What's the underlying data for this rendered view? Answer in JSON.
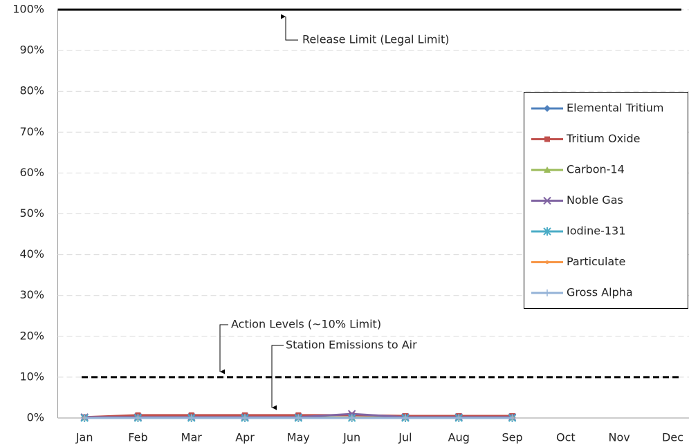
{
  "chart_data": {
    "type": "line",
    "categories": [
      "Jan",
      "Feb",
      "Mar",
      "Apr",
      "May",
      "Jun",
      "Jul",
      "Aug",
      "Sep",
      "Oct",
      "Nov",
      "Dec"
    ],
    "series": [
      {
        "name": "Elemental Tritium",
        "color": "#4f81bd",
        "marker": "diamond",
        "values": [
          0.1,
          0.1,
          0.1,
          0.1,
          0.1,
          0.1,
          0.1,
          0.1,
          0.1,
          null,
          null,
          null
        ]
      },
      {
        "name": "Tritium Oxide",
        "color": "#c0504d",
        "marker": "square",
        "values": [
          0.2,
          0.7,
          0.7,
          0.7,
          0.7,
          0.7,
          0.5,
          0.5,
          0.5,
          null,
          null,
          null
        ]
      },
      {
        "name": "Carbon-14",
        "color": "#9bbb59",
        "marker": "triangle",
        "values": [
          0.1,
          0.1,
          0.1,
          0.1,
          0.1,
          0.1,
          0.1,
          0.1,
          0.1,
          null,
          null,
          null
        ]
      },
      {
        "name": "Noble Gas",
        "color": "#8064a2",
        "marker": "x",
        "values": [
          0.2,
          0.2,
          0.2,
          0.2,
          0.2,
          1.0,
          0.2,
          0.2,
          0.2,
          null,
          null,
          null
        ]
      },
      {
        "name": "Iodine-131",
        "color": "#4bacc6",
        "marker": "star",
        "values": [
          0,
          0,
          0,
          0,
          0,
          0,
          0,
          0,
          0,
          null,
          null,
          null
        ]
      },
      {
        "name": "Particulate",
        "color": "#f79646",
        "marker": "dot",
        "values": [
          0,
          0,
          0,
          0,
          0,
          0,
          0,
          0,
          0,
          null,
          null,
          null
        ]
      },
      {
        "name": "Gross Alpha",
        "color": "#95b3d7",
        "marker": "plus",
        "values": [
          0,
          0,
          0,
          0,
          0,
          0,
          0,
          0,
          0,
          null,
          null,
          null
        ]
      }
    ],
    "reference_lines": [
      {
        "label": "Release Limit (Legal Limit)",
        "value": 100,
        "style": "solid"
      },
      {
        "label": "Action Levels (~10% Limit)",
        "value": 10,
        "style": "dashed"
      }
    ],
    "annotation": "Station Emissions to Air",
    "ylim": [
      0,
      100
    ],
    "yticks": [
      {
        "value": 0,
        "label": "0%"
      },
      {
        "value": 10,
        "label": "10%"
      },
      {
        "value": 20,
        "label": "20%"
      },
      {
        "value": 30,
        "label": "30%"
      },
      {
        "value": 40,
        "label": "40%"
      },
      {
        "value": 50,
        "label": "50%"
      },
      {
        "value": 60,
        "label": "60%"
      },
      {
        "value": 70,
        "label": "70%"
      },
      {
        "value": 80,
        "label": "80%"
      },
      {
        "value": 90,
        "label": "90%"
      },
      {
        "value": 100,
        "label": "100%"
      }
    ],
    "grid": true,
    "legend": "right"
  }
}
